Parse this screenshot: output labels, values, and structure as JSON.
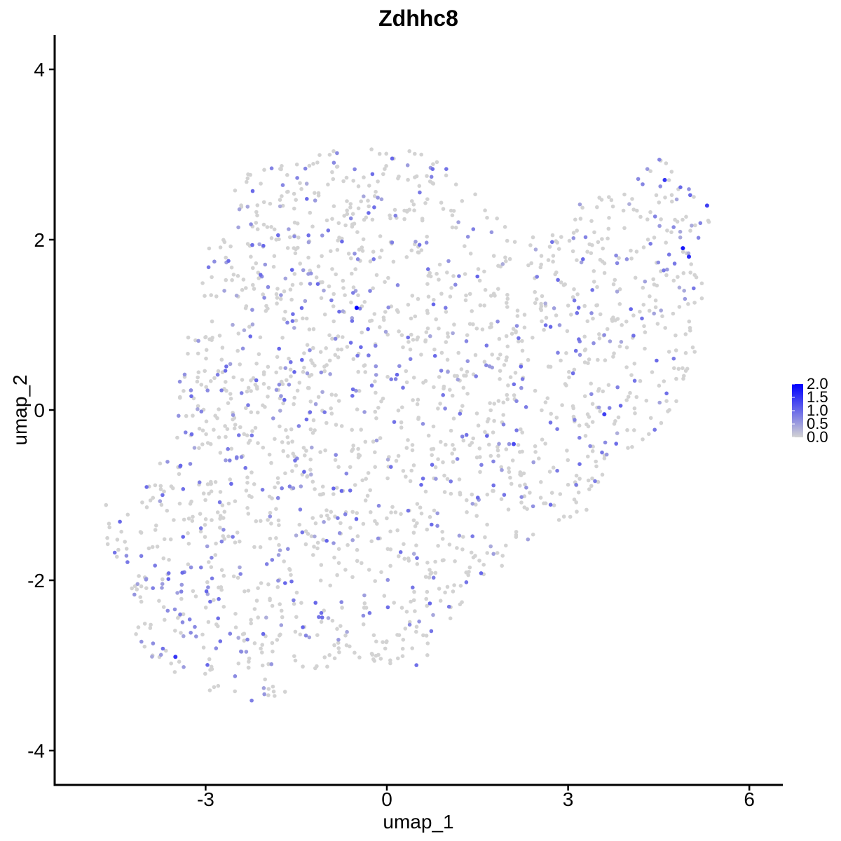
{
  "chart_data": {
    "type": "scatter",
    "title": "Zdhhc8",
    "xlabel": "umap_1",
    "ylabel": "umap_2",
    "xlim": [
      -5.4,
      6.6
    ],
    "ylim": [
      -4.3,
      4.4
    ],
    "x_ticks": [
      -3,
      0,
      3,
      6
    ],
    "y_ticks": [
      -4,
      -2,
      0,
      2,
      4
    ],
    "x_tick_labels": [
      "-3",
      "0",
      "3",
      "6"
    ],
    "y_tick_labels": [
      "-4",
      "-2",
      "0",
      "2",
      "4"
    ],
    "grid": false,
    "legend_position": "right",
    "color_scale": {
      "low": "#d3d3d3",
      "high": "#0000ff",
      "min": 0.0,
      "max": 2.0,
      "breaks": [
        0.0,
        0.5,
        1.0,
        1.5,
        2.0
      ],
      "break_labels": [
        "0.0",
        "0.5",
        "1.0",
        "1.5",
        "2.0"
      ]
    },
    "highlight_points": [
      {
        "x": -0.5,
        "y": 1.2,
        "value": 2.0
      },
      {
        "x": 4.9,
        "y": 1.9,
        "value": 1.8
      },
      {
        "x": 5.0,
        "y": 1.8,
        "value": 1.6
      },
      {
        "x": 4.6,
        "y": 2.7,
        "value": 1.5
      },
      {
        "x": -3.5,
        "y": -2.9,
        "value": 1.5
      },
      {
        "x": 3.6,
        "y": -0.05,
        "value": 1.4
      },
      {
        "x": 5.3,
        "y": 2.4,
        "value": 1.4
      },
      {
        "x": 2.1,
        "y": -0.4,
        "value": 1.3
      }
    ],
    "point_count_estimate": 2000
  }
}
